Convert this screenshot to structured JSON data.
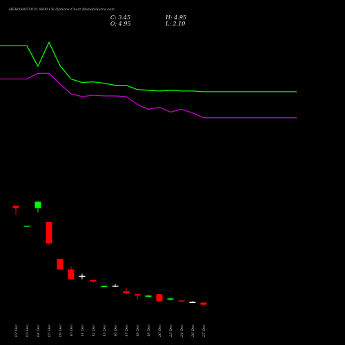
{
  "header": {
    "title": "HEROMOTOCO 6600 CE Options Chart MunafaSutra.com",
    "close_label": "C: 3.45",
    "open_label": "O: 4.95",
    "high_label": "H: 4.95",
    "low_label": "L: 2.10"
  },
  "chart_data": {
    "type": "candlestick",
    "title": "HEROMOTOCO 6600 CE Options Chart MunafaSutra.com",
    "xlabel": "",
    "ylabel": "",
    "grid": false,
    "categories": [
      "02 Dec",
      "03 Dec",
      "04 Dec",
      "05 Dec",
      "09 Dec",
      "10 Dec",
      "11 Dec",
      "12 Dec",
      "13 Dec",
      "16 Dec",
      "17 Dec",
      "18 Dec",
      "19 Dec",
      "20 Dec",
      "23 Dec",
      "24 Dec",
      "26 Dec",
      "27 Dec"
    ],
    "candles": [
      {
        "date": "02 Dec",
        "open": 58.5,
        "high": 58.5,
        "low": 46,
        "close": 55,
        "color": "#ff0000"
      },
      {
        "date": "03 Dec",
        "open": 30,
        "high": 30,
        "low": 30,
        "close": 30,
        "color": "#00ff00"
      },
      {
        "date": "04 Dec",
        "open": 55,
        "high": 65,
        "low": 49,
        "close": 64,
        "color": "#00ff00"
      },
      {
        "date": "05 Dec",
        "open": 35,
        "high": 35,
        "low": 3,
        "close": 5,
        "color": "#ff0000"
      },
      {
        "date": "09 Dec",
        "open": -17,
        "high": -17,
        "low": -33,
        "close": -32,
        "color": "#ff0000"
      },
      {
        "date": "10 Dec",
        "open": -32,
        "high": -28,
        "low": -47,
        "close": -46,
        "color": "#ff0000"
      },
      {
        "date": "11 Dec",
        "open": -41,
        "high": -38,
        "low": -46,
        "close": -42,
        "color": "#ffffff"
      },
      {
        "date": "12 Dec",
        "open": -47,
        "high": -46,
        "low": -51,
        "close": -49,
        "color": "#ff0000"
      },
      {
        "date": "13 Dec",
        "open": -57,
        "high": -55,
        "low": -57,
        "close": -55,
        "color": "#00ff00"
      },
      {
        "date": "16 Dec",
        "open": -55,
        "high": -53,
        "low": -57,
        "close": -55,
        "color": "#ffffff"
      },
      {
        "date": "17 Dec",
        "open": -63,
        "high": -58,
        "low": -67,
        "close": -66,
        "color": "#ff0000"
      },
      {
        "date": "18 Dec",
        "open": -67,
        "high": -67,
        "low": -75,
        "close": -69,
        "color": "#ff0000"
      },
      {
        "date": "19 Dec",
        "open": -71,
        "high": -69,
        "low": -71,
        "close": -69,
        "color": "#00ff00"
      },
      {
        "date": "20 Dec",
        "open": -67,
        "high": -67,
        "low": -78,
        "close": -77,
        "color": "#ff0000"
      },
      {
        "date": "23 Dec",
        "open": -75,
        "high": -73,
        "low": -76,
        "close": -73,
        "color": "#00ff00"
      },
      {
        "date": "24 Dec",
        "open": -76,
        "high": -75,
        "low": -78,
        "close": -77,
        "color": "#ff0000"
      },
      {
        "date": "26 Dec",
        "open": -78,
        "high": -77,
        "low": -79,
        "close": -78,
        "color": "#ffffff"
      },
      {
        "date": "27 Dec",
        "open": -79,
        "high": -78,
        "low": -84,
        "close": -82,
        "color": "#ff0000"
      }
    ],
    "series": [
      {
        "color": "#00ff00",
        "values": [
          285,
          285,
          256,
          290,
          257,
          238,
          233,
          234,
          232,
          229,
          229,
          223,
          222,
          221,
          222,
          221,
          221,
          220
        ]
      },
      {
        "color": "#cc00cc",
        "values": [
          238,
          238,
          246,
          246,
          231,
          217,
          213,
          215,
          214,
          214,
          213,
          202,
          195,
          198,
          191,
          195,
          190,
          183
        ]
      }
    ],
    "ylim": [
      -100,
      350
    ]
  }
}
